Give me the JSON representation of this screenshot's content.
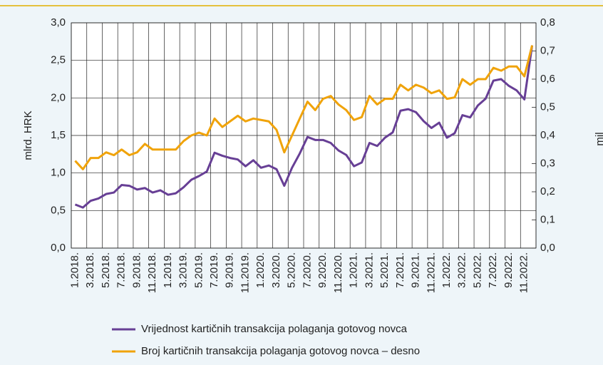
{
  "chart_data": {
    "type": "line",
    "ylabel": "mlrd. HRK",
    "y2label": "mil",
    "categories": [
      "1.2018.",
      null,
      "3.2018.",
      null,
      "5.2018.",
      null,
      "7.2018.",
      null,
      "9.2018.",
      null,
      "11.2018.",
      null,
      "1.2019.",
      null,
      "3.2019.",
      null,
      "5.2019.",
      null,
      "7.2019.",
      null,
      "9.2019.",
      null,
      "11.2019.",
      null,
      "1.2020.",
      null,
      "3.2020.",
      null,
      "5.2020.",
      null,
      "7.2020.",
      null,
      "9.2020.",
      null,
      "11.2020.",
      null,
      "1.2021.",
      null,
      "3.2021.",
      null,
      "5.2021.",
      null,
      "7.2021.",
      null,
      "9.2021.",
      null,
      "11.2021.",
      null,
      "1.2022.",
      null,
      "3.2022.",
      null,
      "5.2022.",
      null,
      "7.2022.",
      null,
      "9.2022.",
      null,
      "11.2022.",
      null
    ],
    "series": [
      {
        "name": "Vrijednost kartičnih transakcija polaganja gotovog novca",
        "color": "#673f95",
        "values": [
          0.58,
          0.54,
          0.63,
          0.66,
          0.72,
          0.74,
          0.84,
          0.83,
          0.78,
          0.8,
          0.74,
          0.77,
          0.71,
          0.73,
          0.81,
          0.91,
          0.96,
          1.02,
          1.27,
          1.23,
          1.2,
          1.18,
          1.09,
          1.17,
          1.07,
          1.1,
          1.05,
          0.83,
          1.07,
          1.26,
          1.48,
          1.44,
          1.44,
          1.4,
          1.3,
          1.24,
          1.09,
          1.14,
          1.4,
          1.36,
          1.47,
          1.54,
          1.83,
          1.85,
          1.81,
          1.69,
          1.6,
          1.67,
          1.47,
          1.53,
          1.77,
          1.74,
          1.9,
          1.99,
          2.23,
          2.25,
          2.16,
          2.1,
          1.98,
          2.7
        ]
      },
      {
        "name": "Broj kartičnih transakcija polaganja gotovog novca – desno",
        "color": "#f0a30a",
        "axis": "y2",
        "values": [
          0.31,
          0.28,
          0.32,
          0.32,
          0.34,
          0.33,
          0.35,
          0.33,
          0.34,
          0.37,
          0.35,
          0.35,
          0.35,
          0.35,
          0.38,
          0.4,
          0.41,
          0.4,
          0.46,
          0.43,
          0.45,
          0.47,
          0.45,
          0.46,
          0.455,
          0.45,
          0.42,
          0.34,
          0.4,
          0.46,
          0.52,
          0.49,
          0.53,
          0.54,
          0.51,
          0.49,
          0.455,
          0.465,
          0.54,
          0.51,
          0.53,
          0.53,
          0.58,
          0.56,
          0.58,
          0.57,
          0.55,
          0.56,
          0.53,
          0.535,
          0.6,
          0.58,
          0.6,
          0.6,
          0.64,
          0.63,
          0.645,
          0.645,
          0.61,
          0.72
        ]
      }
    ],
    "ylim": [
      0,
      3
    ],
    "yticks": [
      {
        "value": 0,
        "label": "0,0"
      },
      {
        "value": 0.5,
        "label": "0,5"
      },
      {
        "value": 1,
        "label": "1,0"
      },
      {
        "value": 1.5,
        "label": "1,5"
      },
      {
        "value": 2,
        "label": "2,0"
      },
      {
        "value": 2.5,
        "label": "2,5"
      },
      {
        "value": 3,
        "label": "3,0"
      }
    ],
    "y2lim": [
      0,
      0.8
    ],
    "y2ticks": [
      {
        "value": 0,
        "label": "0,0"
      },
      {
        "value": 0.1,
        "label": "0,1"
      },
      {
        "value": 0.2,
        "label": "0,2"
      },
      {
        "value": 0.3,
        "label": "0,3"
      },
      {
        "value": 0.4,
        "label": "0,4"
      },
      {
        "value": 0.5,
        "label": "0,5"
      },
      {
        "value": 0.6,
        "label": "0,6"
      },
      {
        "value": 0.7,
        "label": "0,7"
      },
      {
        "value": 0.8,
        "label": "0,8"
      }
    ],
    "grid": true,
    "legend": "bottom"
  }
}
